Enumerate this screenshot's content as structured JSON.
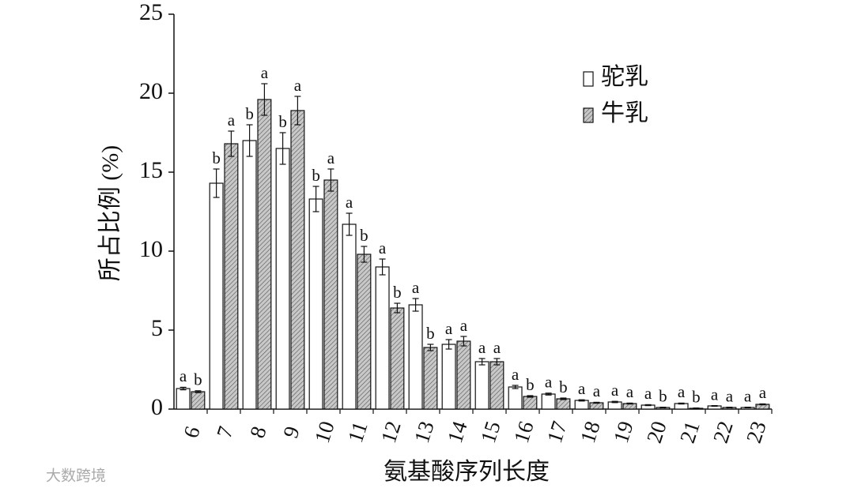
{
  "chart_data": {
    "type": "bar",
    "y_label": "所占比例 (%)",
    "x_label": "氨基酸序列长度",
    "watermark": "大数跨境",
    "categories": [
      "6",
      "7",
      "8",
      "9",
      "10",
      "11",
      "12",
      "13",
      "14",
      "15",
      "16",
      "17",
      "18",
      "19",
      "20",
      "21",
      "22",
      "23"
    ],
    "series": [
      {
        "name": "驼乳",
        "color": "#ffffff",
        "pattern": "none",
        "values": [
          1.3,
          14.3,
          17.0,
          16.5,
          13.3,
          11.7,
          9.0,
          6.6,
          4.1,
          3.0,
          1.4,
          0.95,
          0.55,
          0.45,
          0.25,
          0.35,
          0.2,
          0.1
        ],
        "errors": [
          0.08,
          0.9,
          1.0,
          1.0,
          0.8,
          0.7,
          0.5,
          0.4,
          0.3,
          0.2,
          0.1,
          0.06,
          0.04,
          0.04,
          0.03,
          0.03,
          0.02,
          0.02
        ],
        "letters": [
          "a",
          "b",
          "b",
          "b",
          "b",
          "a",
          "a",
          "a",
          "a",
          "a",
          "a",
          "a",
          "a",
          "a",
          "a",
          "a",
          "a",
          "a"
        ]
      },
      {
        "name": "牛乳",
        "color": "#c8c8c8",
        "pattern": "hatch",
        "values": [
          1.1,
          16.8,
          19.6,
          18.9,
          14.5,
          9.8,
          6.4,
          3.9,
          4.3,
          3.0,
          0.8,
          0.65,
          0.4,
          0.35,
          0.1,
          0.05,
          0.1,
          0.3
        ],
        "errors": [
          0.06,
          0.8,
          1.0,
          0.9,
          0.7,
          0.5,
          0.3,
          0.2,
          0.3,
          0.2,
          0.05,
          0.05,
          0.03,
          0.03,
          0.02,
          0.02,
          0.02,
          0.03
        ],
        "letters": [
          "b",
          "a",
          "a",
          "a",
          "a",
          "b",
          "b",
          "b",
          "a",
          "a",
          "b",
          "b",
          "a",
          "a",
          "b",
          "b",
          "a",
          "a"
        ]
      }
    ],
    "ylim": [
      0,
      25
    ],
    "yticks": [
      0,
      5,
      10,
      15,
      20,
      25
    ],
    "grid": false,
    "legend": "top-right"
  }
}
